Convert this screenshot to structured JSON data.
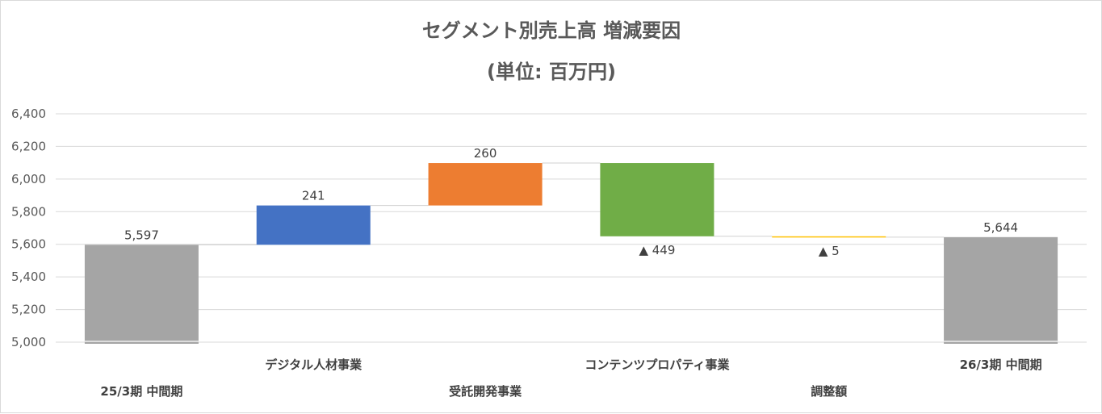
{
  "chart_data": {
    "type": "waterfall",
    "title": "セグメント別売上高 増減要因",
    "subtitle": "(単位: 百万円)",
    "ylim": [
      5000,
      6400
    ],
    "yticks": [
      "5,000",
      "5,200",
      "5,400",
      "5,600",
      "5,800",
      "6,000",
      "6,200",
      "6,400"
    ],
    "ytick_values": [
      5000,
      5200,
      5400,
      5600,
      5800,
      6000,
      6200,
      6400
    ],
    "grid": true,
    "categories": [
      "25/3期 中間期",
      "デジタル人材事業",
      "受託開発事業",
      "コンテンツプロパティ事業",
      "調整額",
      "26/3期 中間期"
    ],
    "steps": [
      {
        "kind": "total",
        "value": 5597,
        "label": "5,597",
        "color": "#a5a5a5"
      },
      {
        "kind": "delta",
        "value": 241,
        "label": "241",
        "color": "#4472c4"
      },
      {
        "kind": "delta",
        "value": 260,
        "label": "260",
        "color": "#ed7d31"
      },
      {
        "kind": "delta",
        "value": -449,
        "label": "▲ 449",
        "color": "#70ad47"
      },
      {
        "kind": "delta",
        "value": -5,
        "label": "▲ 5",
        "color": "#ffc000"
      },
      {
        "kind": "total",
        "value": 5644,
        "label": "5,644",
        "color": "#a5a5a5"
      }
    ]
  }
}
